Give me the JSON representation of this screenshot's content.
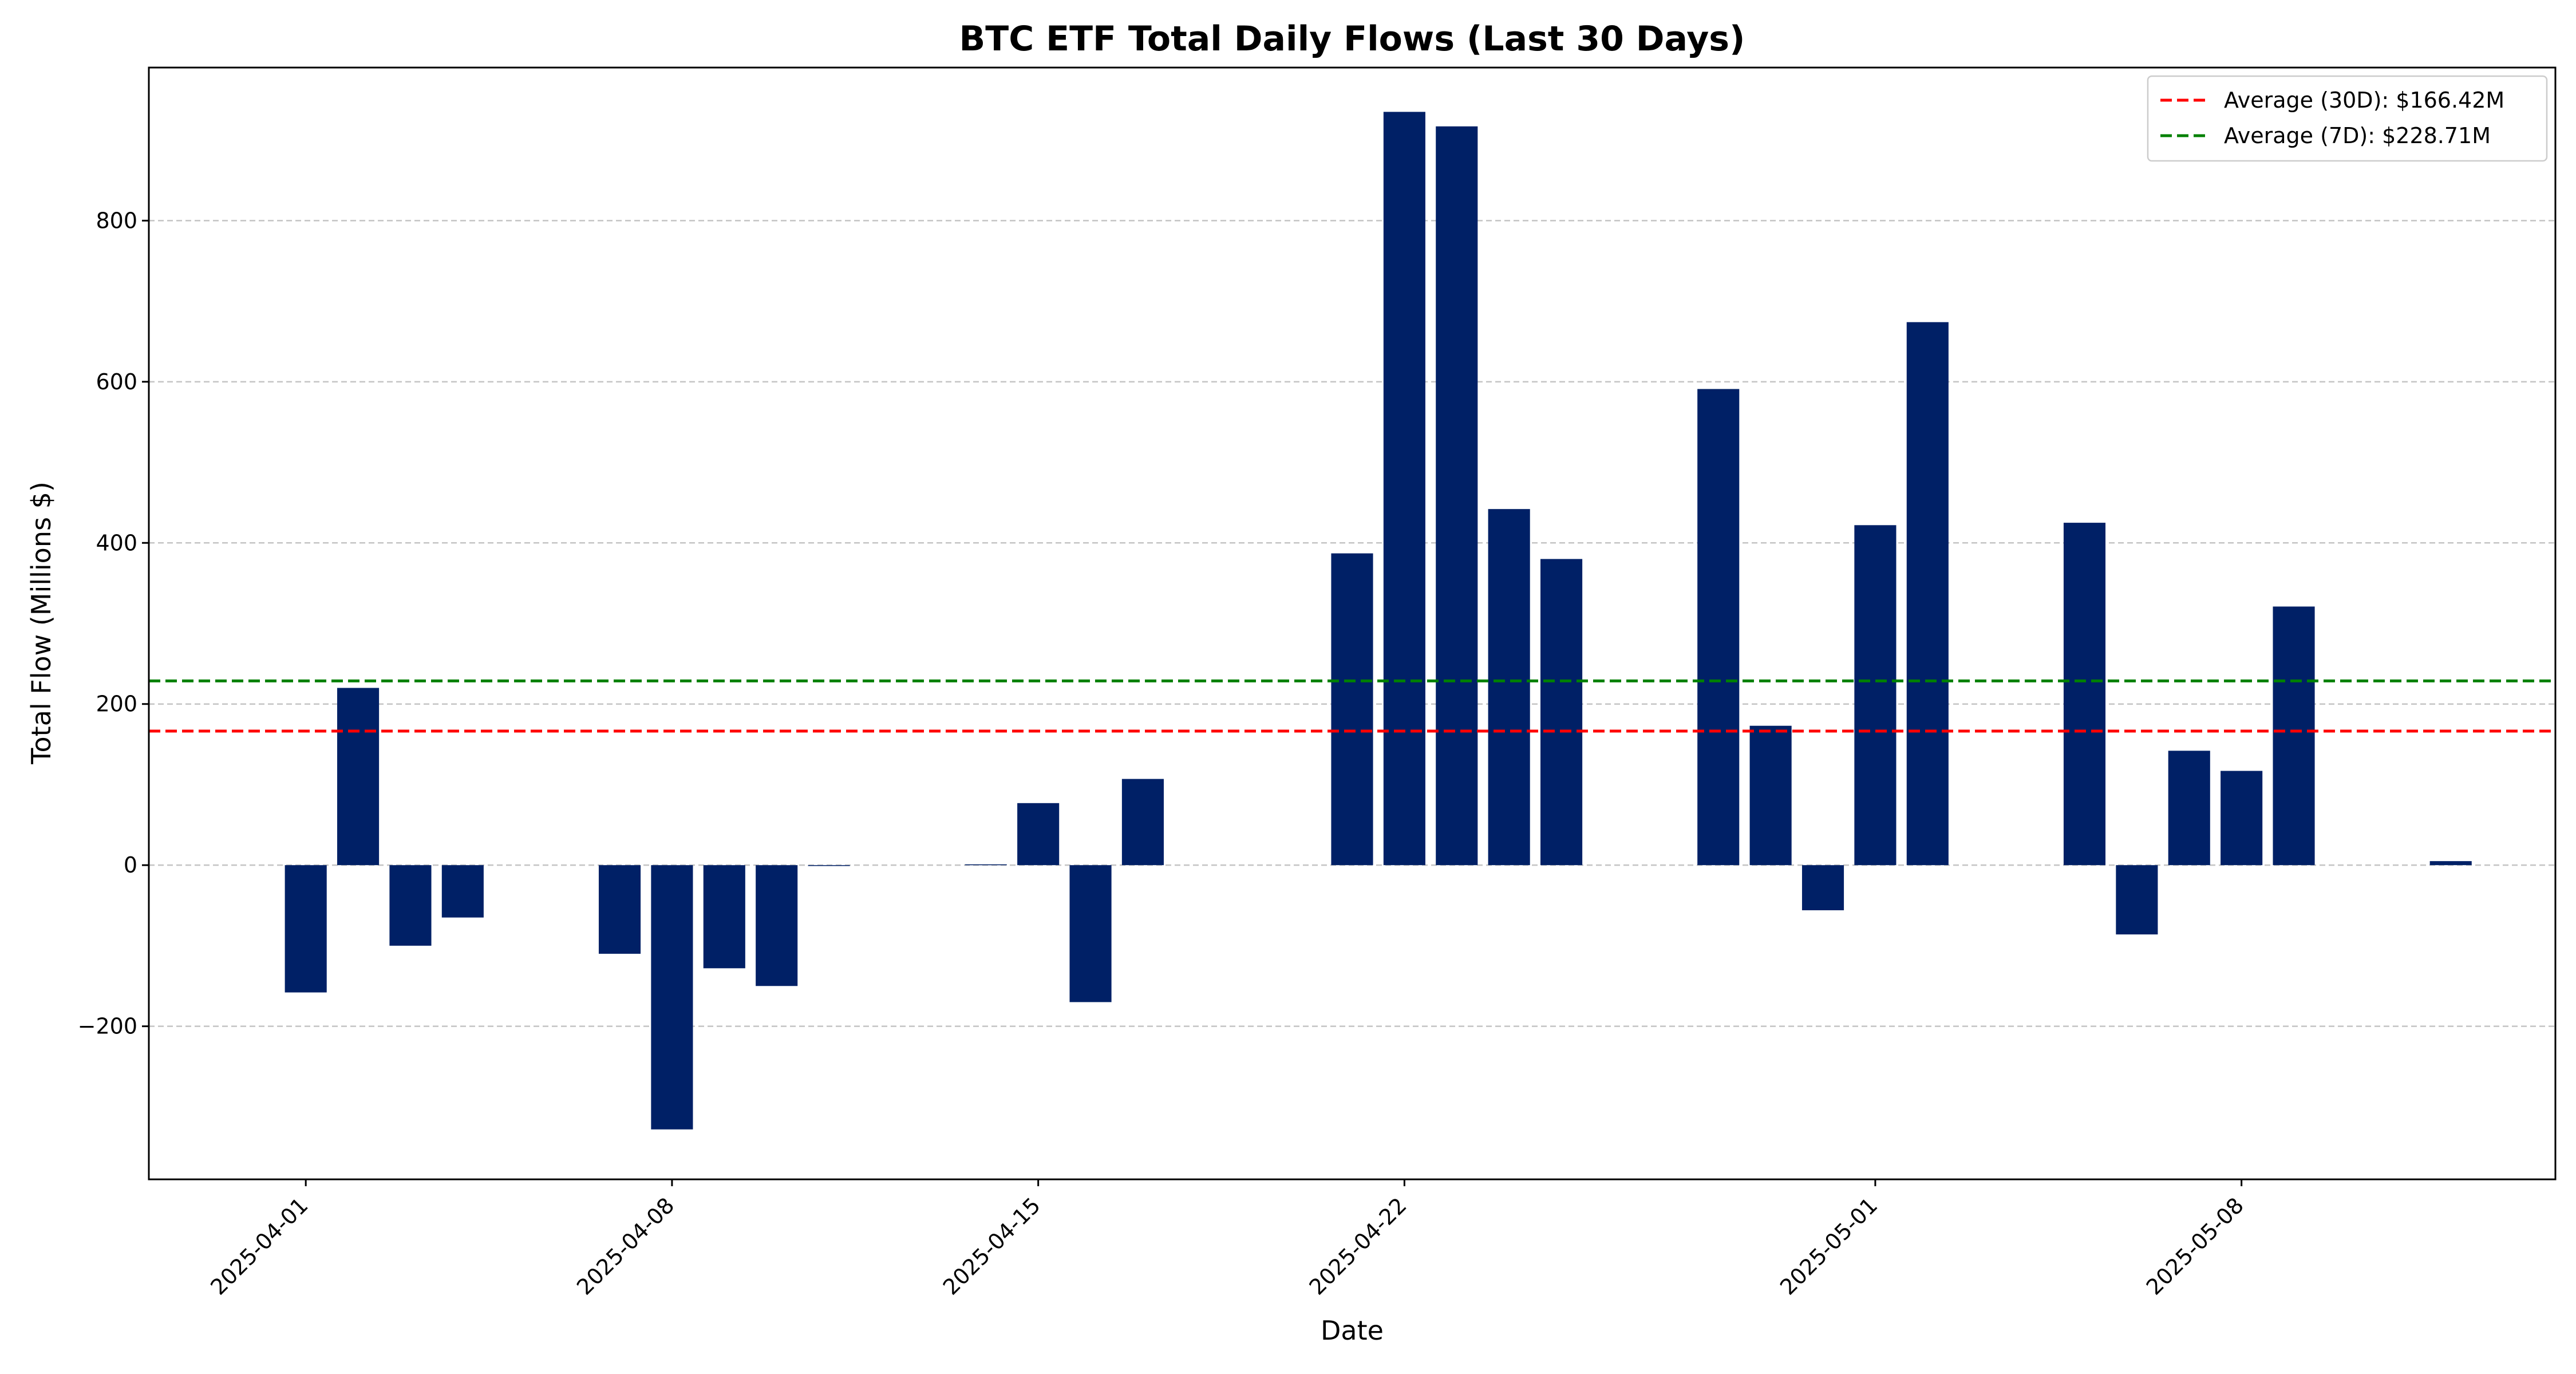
{
  "chart_data": {
    "type": "bar",
    "title": "BTC ETF Total Daily Flows (Last 30 Days)",
    "xlabel": "Date",
    "ylabel": "Total Flow (Millions $)",
    "ylim": [
      -390,
      990
    ],
    "yticks": [
      -200,
      0,
      200,
      400,
      600,
      800
    ],
    "ytick_labels": [
      "−200",
      "0",
      "200",
      "400",
      "600",
      "800"
    ],
    "xlim": [
      "2025-03-29",
      "2025-05-14"
    ],
    "xticks": [
      "2025-04-01",
      "2025-04-08",
      "2025-04-15",
      "2025-04-22",
      "2025-05-01",
      "2025-05-08"
    ],
    "grid": "horizontal dashed",
    "bar_color": "#002066",
    "dates": [
      "2025-04-01",
      "2025-04-02",
      "2025-04-03",
      "2025-04-04",
      "2025-04-07",
      "2025-04-08",
      "2025-04-09",
      "2025-04-10",
      "2025-04-11",
      "2025-04-14",
      "2025-04-15",
      "2025-04-16",
      "2025-04-17",
      "2025-04-21",
      "2025-04-22",
      "2025-04-23",
      "2025-04-24",
      "2025-04-25",
      "2025-04-28",
      "2025-04-29",
      "2025-04-30",
      "2025-05-01",
      "2025-05-02",
      "2025-05-05",
      "2025-05-06",
      "2025-05-07",
      "2025-05-08",
      "2025-05-09",
      "2025-05-12"
    ],
    "values": [
      -158,
      220,
      -100,
      -65,
      -110,
      -328,
      -128,
      -150,
      -1,
      1,
      77,
      -170,
      107,
      387,
      935,
      917,
      442,
      380,
      591,
      173,
      -56,
      422,
      674,
      425,
      -86,
      142,
      117,
      321,
      5
    ],
    "reference_lines": [
      {
        "name": "Average (30D): $166.42M",
        "value": 166.42,
        "color": "#ff0000"
      },
      {
        "name": "Average (7D): $228.71M",
        "value": 228.71,
        "color": "#008000"
      }
    ],
    "legend_position": "top-right"
  }
}
